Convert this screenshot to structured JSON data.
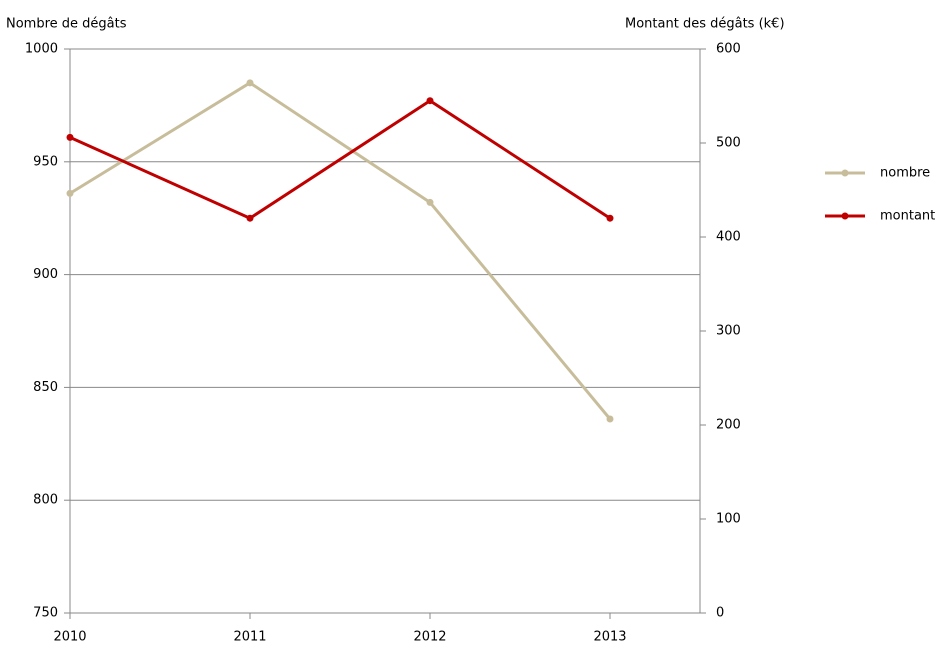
{
  "chart_data": {
    "type": "line",
    "y_label": "Nombre de dégâts",
    "y2_label": "Montant des dégâts (k€)",
    "categories": [
      "2010",
      "2011",
      "2012",
      "2013"
    ],
    "series": [
      {
        "name": "nombre",
        "color": "#c8bd9b",
        "values": [
          936,
          985,
          932,
          836
        ]
      },
      {
        "name": "montant",
        "color": "#c00000",
        "axis": "y2",
        "values": [
          506,
          420,
          545,
          420
        ]
      }
    ],
    "ylim": [
      750,
      1000
    ],
    "yticks": [
      750,
      800,
      850,
      900,
      950,
      1000
    ],
    "y2lim": [
      0,
      600
    ],
    "y2ticks": [
      0,
      100,
      200,
      300,
      400,
      500,
      600
    ],
    "grid": true,
    "legend": "right"
  }
}
